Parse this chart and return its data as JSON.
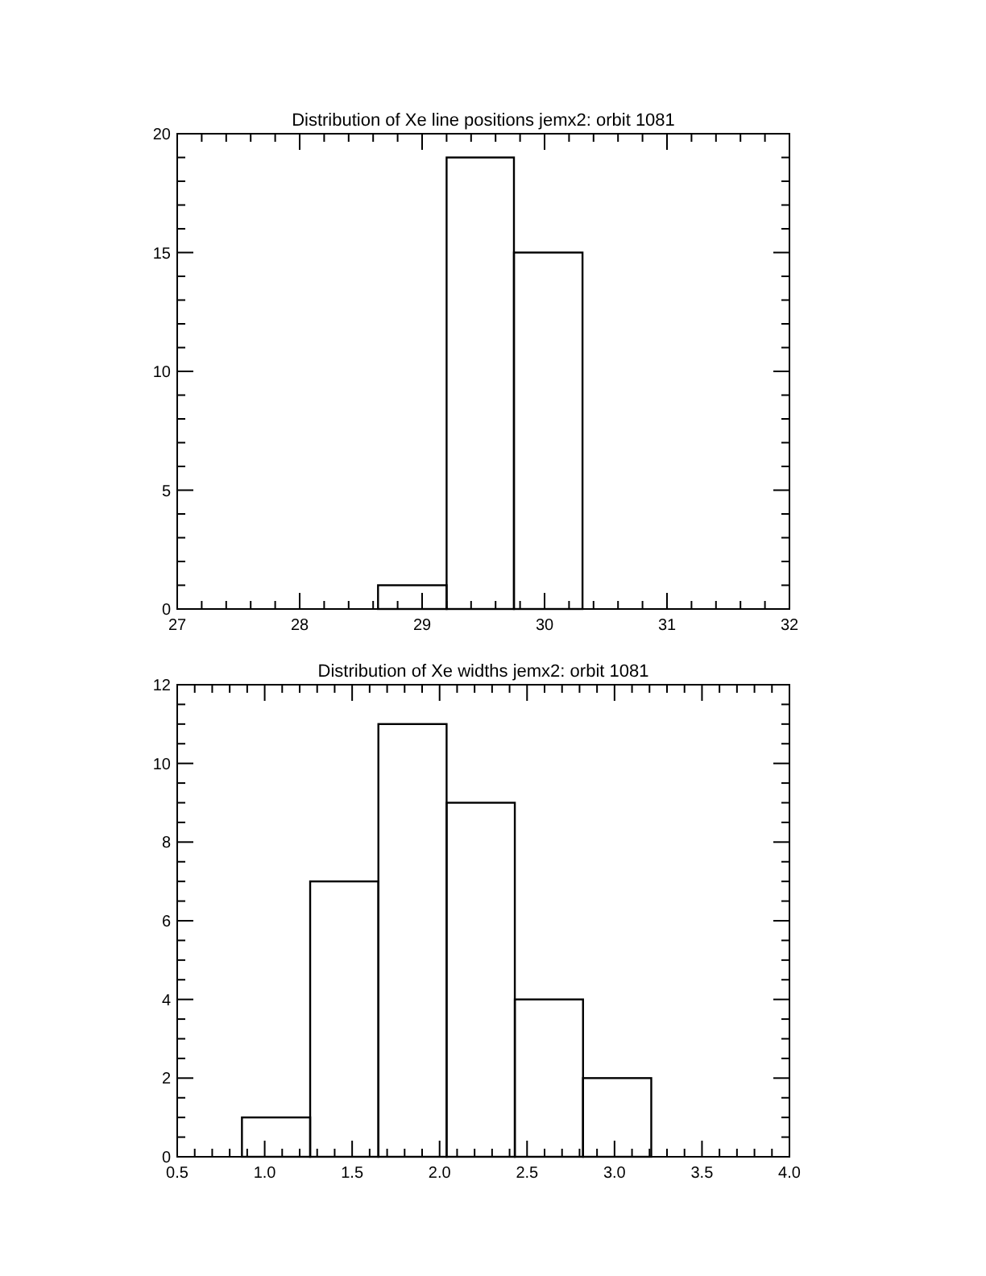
{
  "chart_data": [
    {
      "type": "histogram",
      "title": "Distribution of Xe line positions jemx2: orbit 1081",
      "bins": [
        28.64,
        29.2,
        29.75,
        30.31
      ],
      "values": [
        1,
        19,
        15
      ],
      "color": "#000000",
      "xlim": [
        27,
        32
      ],
      "xticks": [
        27,
        28,
        29,
        30,
        31,
        32
      ],
      "ylim": [
        0,
        20
      ],
      "yticks": [
        0,
        5,
        10,
        15,
        20
      ],
      "grid": false
    },
    {
      "type": "histogram",
      "title": "Distribution of Xe widths jemx2: orbit 1081",
      "bins": [
        0.87,
        1.26,
        1.65,
        2.04,
        2.43,
        2.82,
        3.21
      ],
      "values": [
        1,
        7,
        11,
        9,
        4,
        2
      ],
      "color": "#000000",
      "xlim": [
        0.5,
        4.0
      ],
      "xticks": [
        {
          "value": 0.5,
          "label": "0.5"
        },
        {
          "value": 1.0,
          "label": "1.0"
        },
        {
          "value": 1.5,
          "label": "1.5"
        },
        {
          "value": 2.0,
          "label": "2.0"
        },
        {
          "value": 2.5,
          "label": "2.5"
        },
        {
          "value": 3.0,
          "label": "3.0"
        },
        {
          "value": 3.5,
          "label": "3.5"
        },
        {
          "value": 4.0,
          "label": "4.0"
        }
      ],
      "ylim": [
        0,
        12
      ],
      "yticks": [
        0,
        2,
        4,
        6,
        8,
        10,
        12
      ],
      "grid": false
    }
  ]
}
